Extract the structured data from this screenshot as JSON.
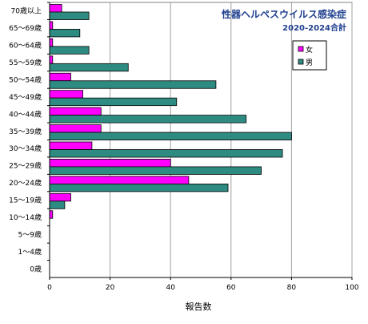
{
  "chart_data": {
    "type": "bar",
    "orientation": "horizontal",
    "title": "性器ヘルペスウイルス感染症",
    "subtitle": "2020-2024合計",
    "xlabel": "報告数",
    "ylabel": "",
    "xlim": [
      0,
      100
    ],
    "xticks": [
      0,
      20,
      40,
      60,
      80,
      100
    ],
    "grid": true,
    "legend_position": "top-right",
    "categories": [
      "70歳以上",
      "65～69歳",
      "60～64歳",
      "55～59歳",
      "50～54歳",
      "45～49歳",
      "40～44歳",
      "35～39歳",
      "30～34歳",
      "25～29歳",
      "20～24歳",
      "15～19歳",
      "10～14歳",
      "5～9歳",
      "1～4歳",
      "0歳"
    ],
    "series": [
      {
        "name": "女",
        "color": "#FF00FF",
        "values": [
          4,
          1,
          1,
          1,
          7,
          11,
          17,
          17,
          14,
          40,
          46,
          7,
          1,
          0,
          0,
          0
        ]
      },
      {
        "name": "男",
        "color": "#2E8B82",
        "values": [
          13,
          10,
          13,
          26,
          55,
          42,
          65,
          80,
          77,
          70,
          59,
          5,
          0,
          0,
          0,
          0
        ]
      }
    ]
  }
}
